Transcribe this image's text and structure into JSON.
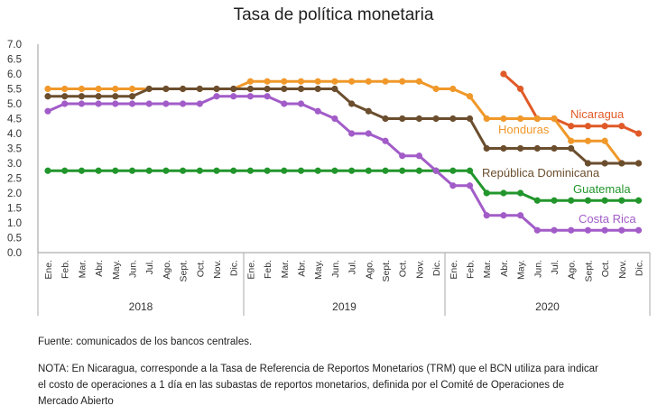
{
  "title": "Tasa de política monetaria",
  "source": "Fuente: comunicados de los bancos centrales.",
  "note_lines": [
    "NOTA: En Nicaragua, corresponde a la Tasa de Referencia de Reportos Monetarios (TRM) que el BCN utiliza para indicar",
    "el costo de operaciones a 1 día en las subastas de reportos monetarios, definida por el Comité de Operaciones de",
    "Mercado Abierto"
  ],
  "chart_data": {
    "type": "line",
    "ylim": [
      0,
      7
    ],
    "yticks": [
      "0.0",
      "0.5",
      "1.0",
      "1.5",
      "2.0",
      "2.5",
      "3.0",
      "3.5",
      "4.0",
      "4.5",
      "5.0",
      "5.5",
      "6.0",
      "6.5",
      "7.0"
    ],
    "months": [
      "Ene.",
      "Feb.",
      "Mar.",
      "Abr.",
      "May.",
      "Jun.",
      "Jul.",
      "Ago.",
      "Sept.",
      "Oct.",
      "Nov.",
      "Dic."
    ],
    "years": [
      "2018",
      "2019",
      "2020"
    ],
    "grid": false,
    "series": [
      {
        "name": "Nicaragua",
        "color": "#e05a28",
        "values": [
          null,
          null,
          null,
          null,
          null,
          null,
          null,
          null,
          null,
          null,
          null,
          null,
          null,
          null,
          null,
          null,
          null,
          null,
          null,
          null,
          null,
          null,
          null,
          null,
          null,
          null,
          null,
          6.0,
          5.5,
          4.5,
          4.5,
          4.25,
          4.25,
          4.25,
          4.25,
          4.0
        ]
      },
      {
        "name": "Honduras",
        "color": "#f0982a",
        "values": [
          5.5,
          5.5,
          5.5,
          5.5,
          5.5,
          5.5,
          5.5,
          5.5,
          5.5,
          5.5,
          5.5,
          5.5,
          5.75,
          5.75,
          5.75,
          5.75,
          5.75,
          5.75,
          5.75,
          5.75,
          5.75,
          5.75,
          5.75,
          5.5,
          5.5,
          5.25,
          4.5,
          4.5,
          4.5,
          4.5,
          4.5,
          3.75,
          3.75,
          3.75,
          3.0,
          3.0
        ]
      },
      {
        "name": "República Dominicana",
        "color": "#6b4e2e",
        "values": [
          5.25,
          5.25,
          5.25,
          5.25,
          5.25,
          5.25,
          5.5,
          5.5,
          5.5,
          5.5,
          5.5,
          5.5,
          5.5,
          5.5,
          5.5,
          5.5,
          5.5,
          5.5,
          5.0,
          4.75,
          4.5,
          4.5,
          4.5,
          4.5,
          4.5,
          4.5,
          3.5,
          3.5,
          3.5,
          3.5,
          3.5,
          3.5,
          3.0,
          3.0,
          3.0,
          3.0
        ]
      },
      {
        "name": "Guatemala",
        "color": "#22962c",
        "values": [
          2.75,
          2.75,
          2.75,
          2.75,
          2.75,
          2.75,
          2.75,
          2.75,
          2.75,
          2.75,
          2.75,
          2.75,
          2.75,
          2.75,
          2.75,
          2.75,
          2.75,
          2.75,
          2.75,
          2.75,
          2.75,
          2.75,
          2.75,
          2.75,
          2.75,
          2.75,
          2.0,
          2.0,
          2.0,
          1.75,
          1.75,
          1.75,
          1.75,
          1.75,
          1.75,
          1.75
        ]
      },
      {
        "name": "Costa Rica",
        "color": "#a25cc8",
        "values": [
          4.75,
          5.0,
          5.0,
          5.0,
          5.0,
          5.0,
          5.0,
          5.0,
          5.0,
          5.0,
          5.25,
          5.25,
          5.25,
          5.25,
          5.0,
          5.0,
          4.75,
          4.5,
          4.0,
          4.0,
          3.75,
          3.25,
          3.25,
          2.75,
          2.25,
          2.25,
          1.25,
          1.25,
          1.25,
          0.75,
          0.75,
          0.75,
          0.75,
          0.75,
          0.75,
          0.75
        ]
      }
    ]
  }
}
